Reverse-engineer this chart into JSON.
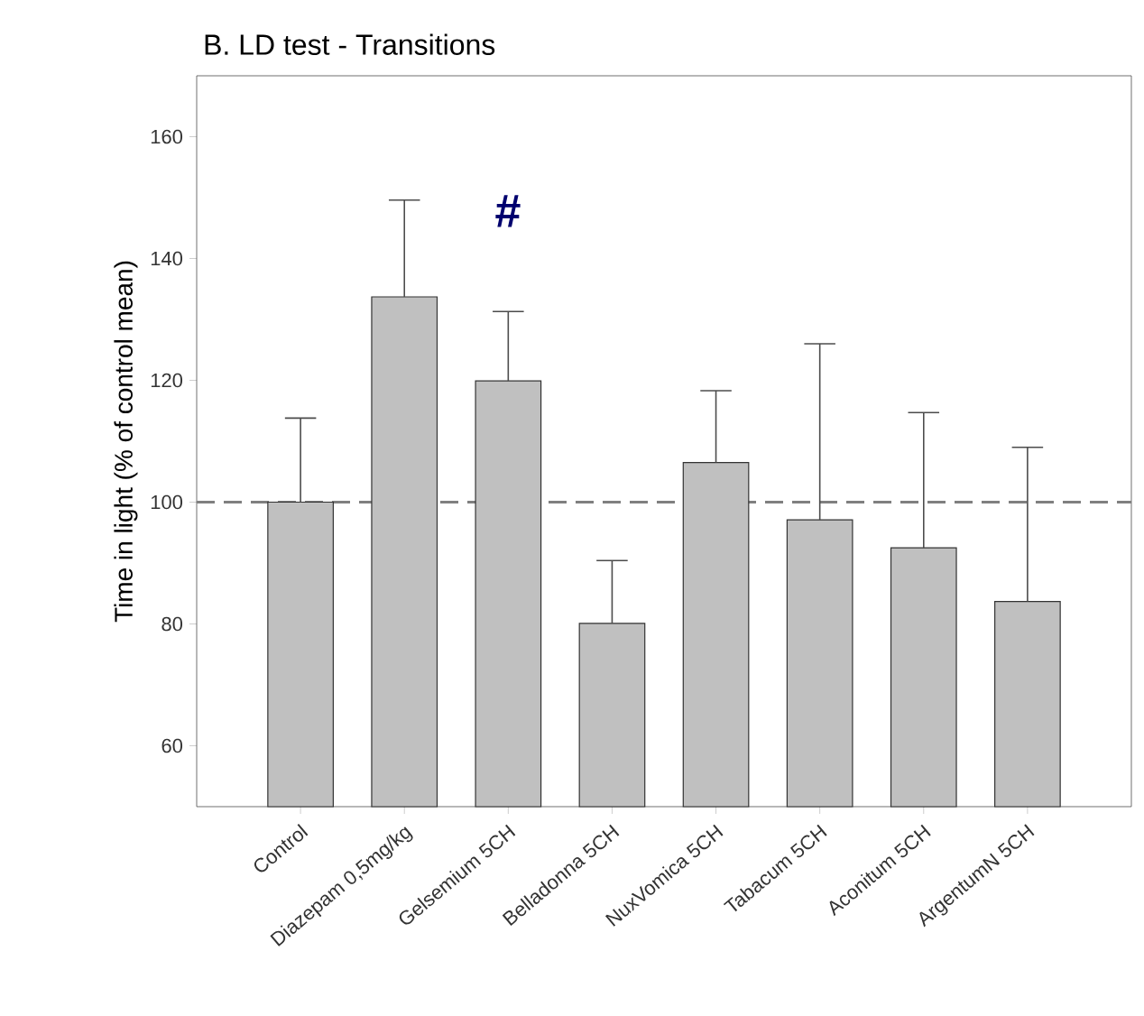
{
  "chart_data": {
    "type": "bar",
    "title": "B. LD test - Transitions",
    "ylabel": "Time in light (% of control mean)",
    "categories": [
      "Control",
      "Diazepam 0,5mg/kg",
      "Gelsemium 5CH",
      "Belladonna 5CH",
      "NuxVomica 5CH",
      "Tabacum 5CH",
      "Aconitum 5CH",
      "ArgentumN 5CH"
    ],
    "values": [
      100,
      133.7,
      119.9,
      80.1,
      106.5,
      97.1,
      92.5,
      83.7
    ],
    "errors": [
      [
        100,
        113.8
      ],
      [
        133.7,
        149.6
      ],
      [
        119.9,
        131.3
      ],
      [
        80.1,
        90.4
      ],
      [
        106.5,
        118.3
      ],
      [
        97.1,
        126
      ],
      [
        92.5,
        114.7
      ],
      [
        83.7,
        109
      ]
    ],
    "color": "#c0c0c0",
    "ylim": [
      50,
      170
    ],
    "yticks": [
      60,
      80,
      100,
      120,
      140,
      160
    ],
    "ref_lines": [
      {
        "axis": "y",
        "value": 100,
        "color": "#808080",
        "line_style": "dashed"
      }
    ],
    "annotations": [
      "#"
    ]
  }
}
